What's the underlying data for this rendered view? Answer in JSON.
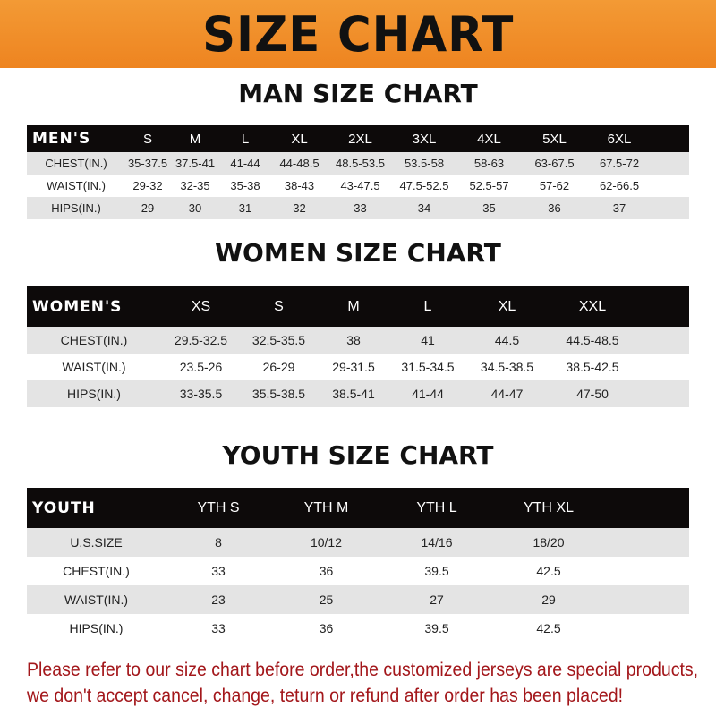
{
  "banner": {
    "title": "SIZE CHART",
    "color": "#ee8420"
  },
  "men": {
    "title": "MAN SIZE CHART",
    "header": [
      "MEN'S",
      "S",
      "M",
      "L",
      "XL",
      "2XL",
      "3XL",
      "4XL",
      "5XL",
      "6XL"
    ],
    "rows": [
      [
        "CHEST(IN.)",
        "35-37.5",
        "37.5-41",
        "41-44",
        "44-48.5",
        "48.5-53.5",
        "53.5-58",
        "58-63",
        "63-67.5",
        "67.5-72"
      ],
      [
        "WAIST(IN.)",
        "29-32",
        "32-35",
        "35-38",
        "38-43",
        "43-47.5",
        "47.5-52.5",
        "52.5-57",
        "57-62",
        "62-66.5"
      ],
      [
        "HIPS(IN.)",
        "29",
        "30",
        "31",
        "32",
        "33",
        "34",
        "35",
        "36",
        "37"
      ]
    ]
  },
  "women": {
    "title": "WOMEN SIZE CHART",
    "header": [
      "WOMEN'S",
      "XS",
      "S",
      "M",
      "L",
      "XL",
      "XXL"
    ],
    "rows": [
      [
        "CHEST(IN.)",
        "29.5-32.5",
        "32.5-35.5",
        "38",
        "41",
        "44.5",
        "44.5-48.5"
      ],
      [
        "WAIST(IN.)",
        "23.5-26",
        "26-29",
        "29-31.5",
        "31.5-34.5",
        "34.5-38.5",
        "38.5-42.5"
      ],
      [
        "HIPS(IN.)",
        "33-35.5",
        "35.5-38.5",
        "38.5-41",
        "41-44",
        "44-47",
        "47-50"
      ]
    ]
  },
  "youth": {
    "title": "YOUTH SIZE CHART",
    "header": [
      "YOUTH",
      "YTH S",
      "YTH M",
      "YTH L",
      "YTH XL"
    ],
    "rows": [
      [
        "U.S.SIZE",
        "8",
        "10/12",
        "14/16",
        "18/20"
      ],
      [
        "CHEST(IN.)",
        "33",
        "36",
        "39.5",
        "42.5"
      ],
      [
        "WAIST(IN.)",
        "23",
        "25",
        "27",
        "29"
      ],
      [
        "HIPS(IN.)",
        "33",
        "36",
        "39.5",
        "42.5"
      ]
    ]
  },
  "footer": {
    "line1": "Please refer to our size chart before order,the customized jerseys are special products,",
    "line2": "we don't accept cancel, change, teturn or refund after order has been placed!",
    "color": "#a3171b"
  }
}
